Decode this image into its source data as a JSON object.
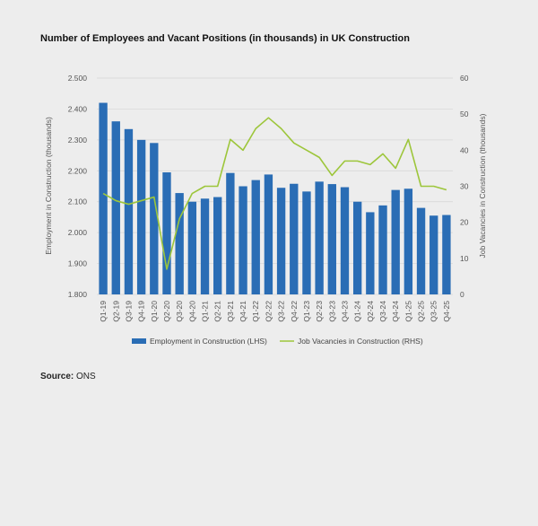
{
  "title": "Number of Employees and Vacant Positions (in thousands) in UK Construction",
  "source": {
    "label": "Source:",
    "value": "ONS"
  },
  "chart_data": {
    "type": "bar+line",
    "title": "Number of Employees and Vacant Positions (in thousands) in UK Construction",
    "ylabel": "Employment in Construction (thousands)",
    "y2label": "Job Vacancies in Construction (thousands)",
    "ylim": [
      1.8,
      2.5
    ],
    "y2lim": [
      0,
      60
    ],
    "yticks": [
      "1.800",
      "1.900",
      "2.000",
      "2.100",
      "2.200",
      "2.300",
      "2.400",
      "2.500"
    ],
    "y2ticks": [
      "0",
      "10",
      "20",
      "30",
      "40",
      "50",
      "60"
    ],
    "grid": true,
    "legend_position": "bottom",
    "categories": [
      "Q1-19",
      "Q2-19",
      "Q3-19",
      "Q4-19",
      "Q1-20",
      "Q2-20",
      "Q3-20",
      "Q4-20",
      "Q1-21",
      "Q2-21",
      "Q3-21",
      "Q4-21",
      "Q1-22",
      "Q2-22",
      "Q3-22",
      "Q4-22",
      "Q1-23",
      "Q2-23",
      "Q3-23",
      "Q4-23",
      "Q1-24",
      "Q2-24",
      "Q3-24",
      "Q4-24",
      "Q1-25",
      "Q2-25",
      "Q3-25",
      "Q4-25"
    ],
    "x_labels": [
      "Q1-19",
      "Q2-19",
      "Q3-19",
      "Q4-19",
      "Q1-20",
      "Q2-20",
      "Q3-20",
      "Q4-20",
      "Q1-21",
      "Q2-21",
      "Q3-21",
      "Q4-21",
      "Q1-22",
      "Q2-22",
      "Q3-22",
      "Q4-22",
      "Q1-23",
      "Q2-23",
      "Q3-23",
      "Q4-23",
      "Q1-24",
      "Q2-24",
      "Q3-24",
      "Q4-24",
      "Q1-25",
      "Q2-25",
      "Q3-25",
      "Q4-25"
    ],
    "series": [
      {
        "name": "Employment in Construction (LHS)",
        "type": "bar",
        "axis": "left",
        "color": "#2a6db5",
        "values": [
          2.42,
          2.36,
          2.335,
          2.3,
          2.29,
          2.195,
          2.128,
          2.1,
          2.11,
          2.115,
          2.193,
          2.15,
          2.17,
          2.188,
          2.145,
          2.158,
          2.133,
          2.165,
          2.157,
          2.147,
          2.1,
          2.066,
          2.088,
          2.138,
          2.142,
          2.08,
          2.055,
          2.057
        ]
      },
      {
        "name": "Job Vacancies in Construction (RHS)",
        "type": "line",
        "axis": "right",
        "color": "#9dc63b",
        "values": [
          28,
          26,
          25,
          26,
          27,
          7,
          21,
          28,
          30,
          30,
          43,
          40,
          46,
          49,
          46,
          42,
          40,
          38,
          33,
          37,
          37,
          36,
          39,
          35,
          43,
          30,
          30,
          29
        ]
      }
    ]
  }
}
